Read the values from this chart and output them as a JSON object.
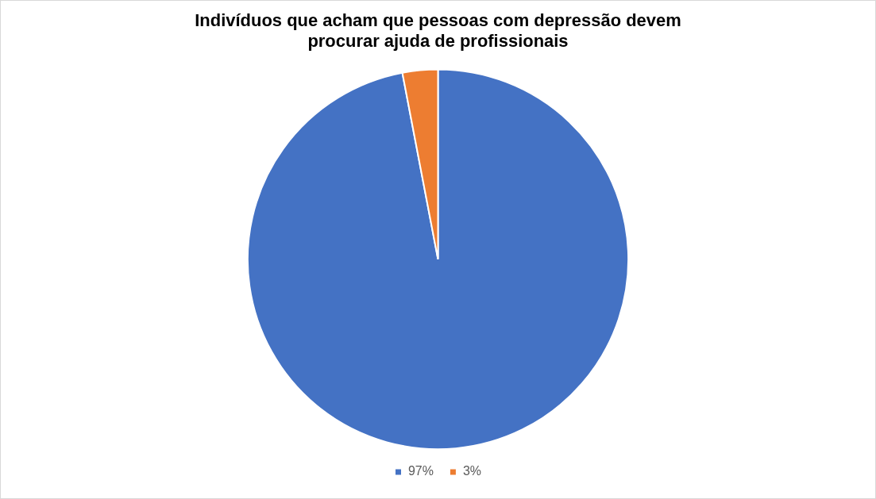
{
  "chart_data": {
    "type": "pie",
    "title": "Indivíduos que acham que pessoas com depressão devem procurar ajuda de profissionais",
    "categories": [
      "97%",
      "3%"
    ],
    "values": [
      97,
      3
    ],
    "colors": [
      "#4472c4",
      "#ed7d31"
    ],
    "legend": "bottom"
  }
}
